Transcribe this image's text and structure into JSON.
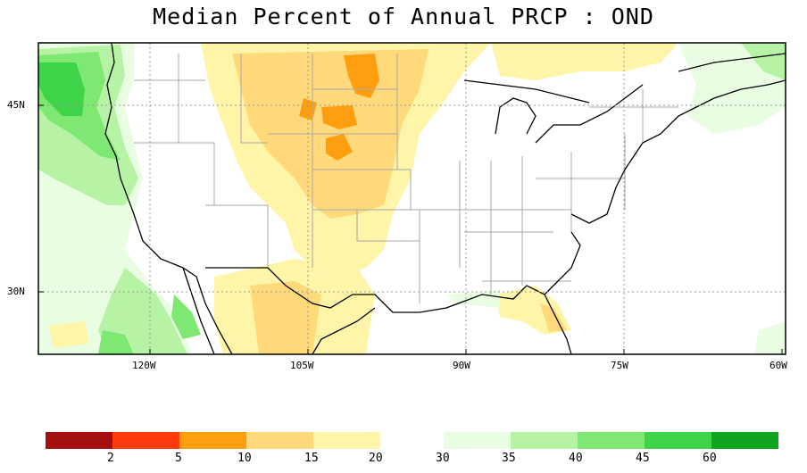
{
  "title": "Median Percent of Annual PRCP  :  OND",
  "lat_labels": [
    "45N",
    "30N"
  ],
  "lon_labels": [
    "120W",
    "105W",
    "90W",
    "75W",
    "60W"
  ],
  "colorbar": {
    "labels": [
      "2",
      "5",
      "10",
      "15",
      "20",
      "30",
      "35",
      "40",
      "45",
      "60"
    ],
    "colors_dry": [
      "#a50f0f",
      "#ff3b0a",
      "#ff9f0f",
      "#ffd97a",
      "#fff5a8"
    ],
    "colors_wet": [
      "#e9fde3",
      "#b6f3a5",
      "#7ee873",
      "#3fd34a",
      "#11a51d"
    ]
  }
}
